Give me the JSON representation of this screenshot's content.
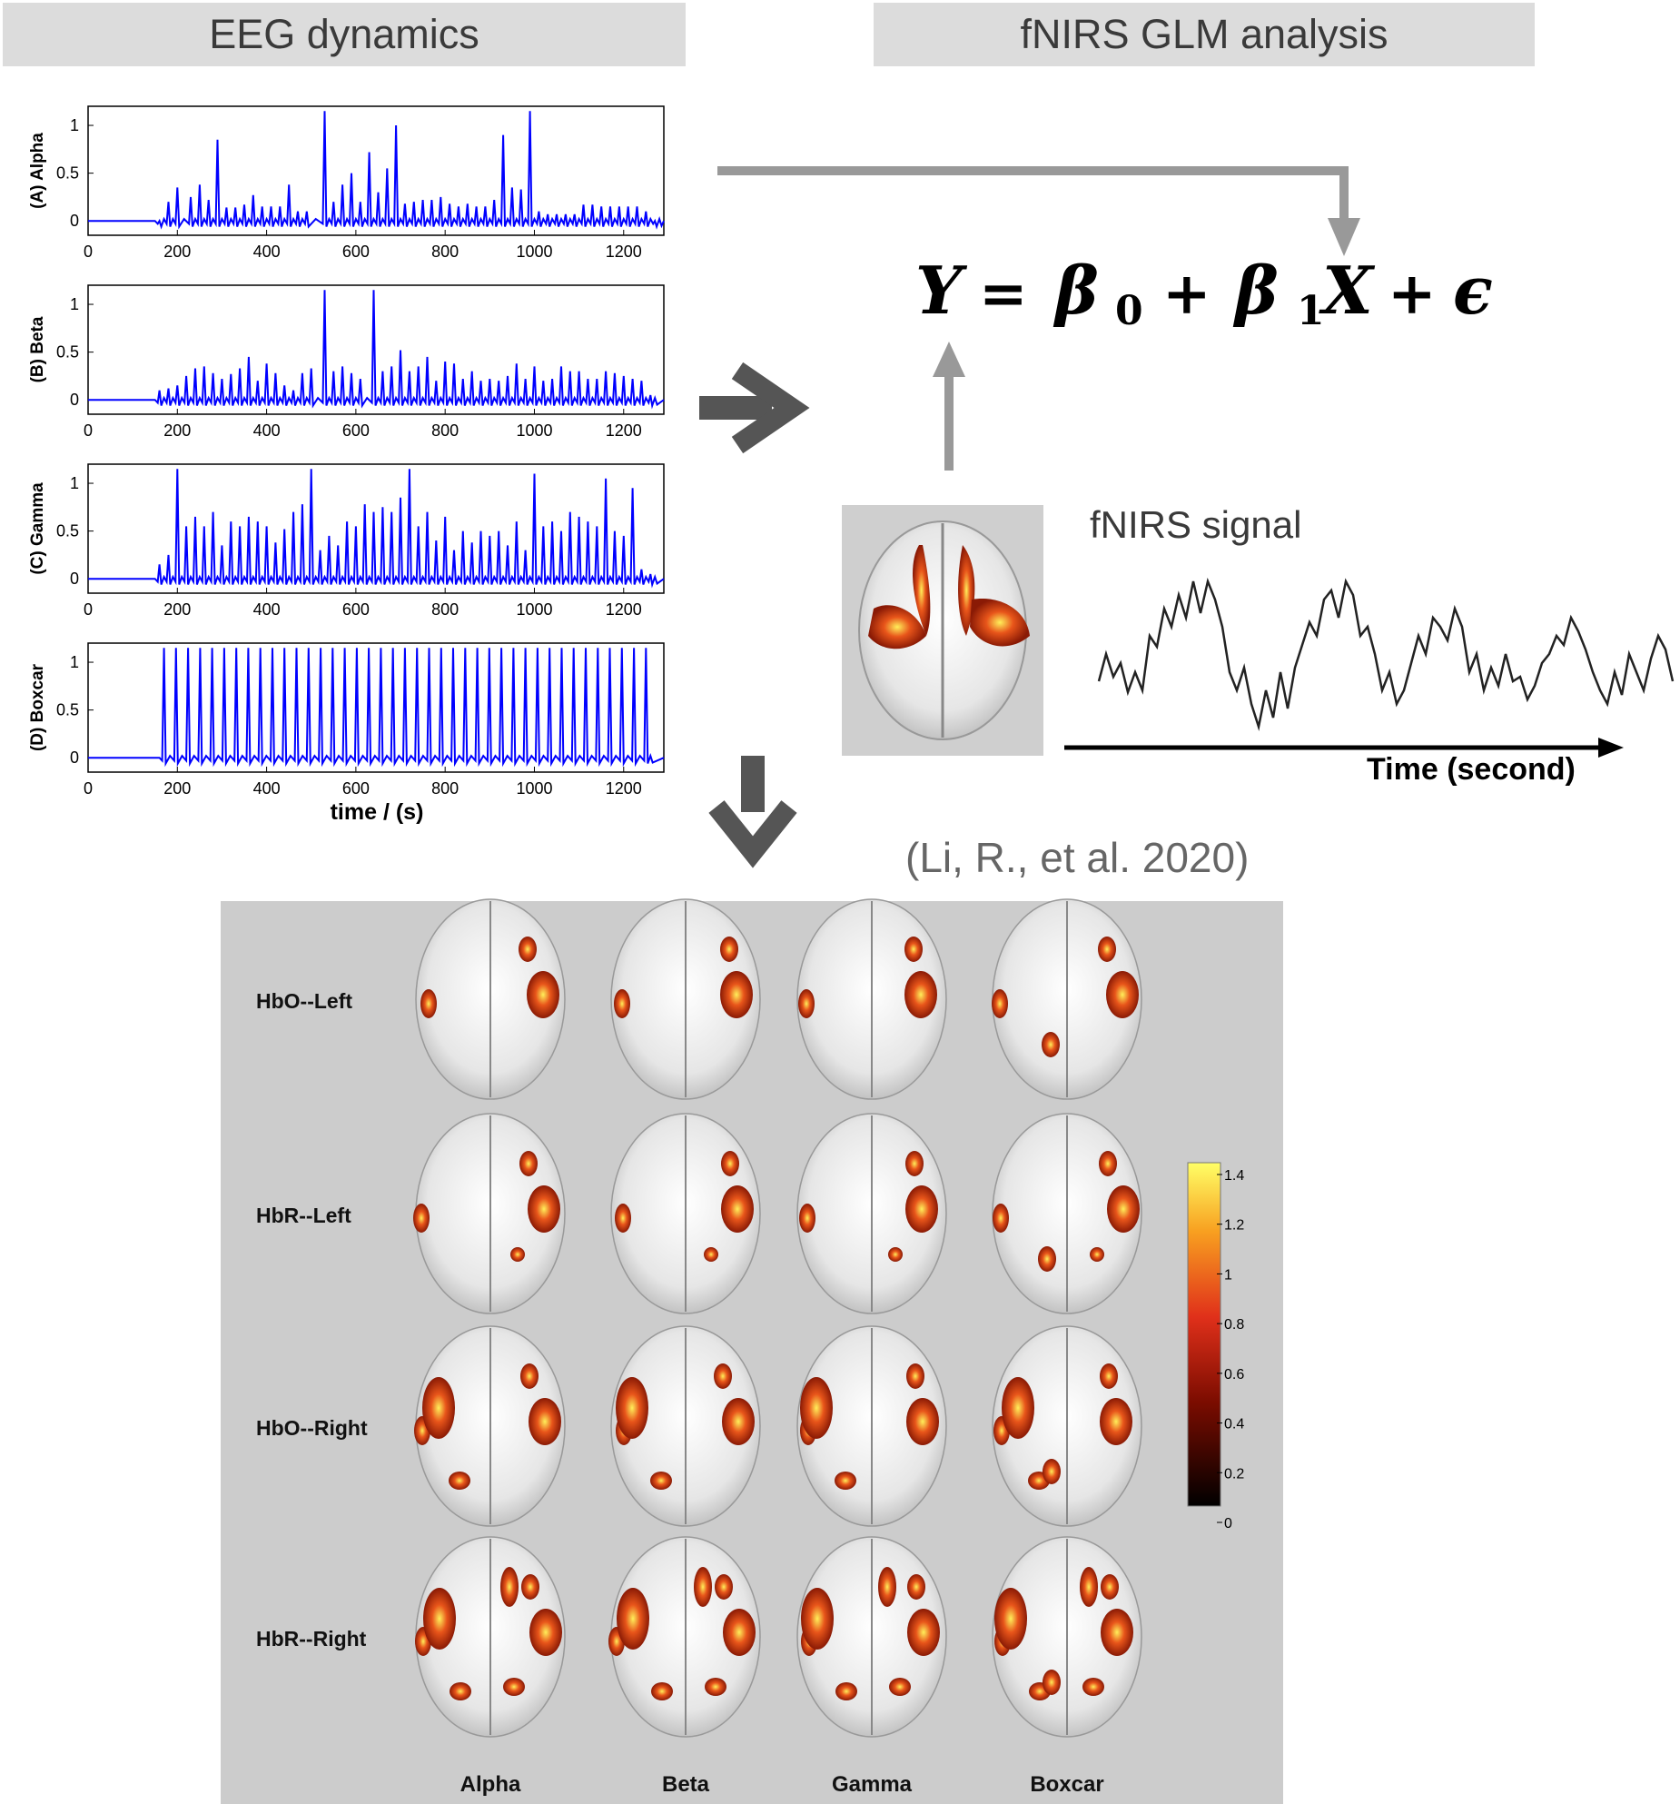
{
  "headers": {
    "left": "EEG dynamics",
    "right": "fNIRS GLM analysis"
  },
  "eeg_panels": {
    "y_ticks": [
      "0",
      "0.5",
      "1"
    ],
    "x_ticks": [
      "0",
      "200",
      "400",
      "600",
      "800",
      "1000",
      "1200"
    ],
    "x_label": "time / (s)",
    "line_color": "#0000ff",
    "labels": [
      "(A) Alpha",
      "(B) Beta",
      "(C) Gamma",
      "(D) Boxcar"
    ]
  },
  "chart_data": [
    {
      "type": "line",
      "title": "",
      "ylabel": "(A) Alpha",
      "xlabel": "",
      "xlim": [
        0,
        1290
      ],
      "ylim": [
        -0.15,
        1.2
      ],
      "x": [
        160,
        180,
        200,
        230,
        250,
        270,
        290,
        310,
        330,
        350,
        370,
        390,
        410,
        430,
        450,
        470,
        490,
        530,
        550,
        570,
        590,
        610,
        630,
        650,
        670,
        690,
        710,
        730,
        750,
        770,
        790,
        810,
        830,
        850,
        870,
        890,
        910,
        930,
        950,
        970,
        990,
        1010,
        1030,
        1050,
        1070,
        1090,
        1110,
        1130,
        1150,
        1170,
        1190,
        1210,
        1230,
        1250,
        1270
      ],
      "series": [
        {
          "values": [
            0,
            0.2,
            0.35,
            0.25,
            0.38,
            0.22,
            0.85,
            0.14,
            0.14,
            0.17,
            0.27,
            0.15,
            0.15,
            0.15,
            0.38,
            0.1,
            0.1,
            1.15,
            0.2,
            0.38,
            0.5,
            0.2,
            0.72,
            0.3,
            0.55,
            1.0,
            0.18,
            0.2,
            0.22,
            0.22,
            0.25,
            0.18,
            0.15,
            0.18,
            0.15,
            0.15,
            0.22,
            0.9,
            0.35,
            0.33,
            1.15,
            0.1,
            0.07,
            0.07,
            0.07,
            0.07,
            0.17,
            0.17,
            0.15,
            0.15,
            0.15,
            0.15,
            0.15,
            0.1,
            0
          ]
        }
      ]
    },
    {
      "type": "line",
      "title": "",
      "ylabel": "(B) Beta",
      "xlabel": "",
      "xlim": [
        0,
        1290
      ],
      "ylim": [
        -0.15,
        1.2
      ],
      "x": [
        160,
        180,
        200,
        220,
        240,
        260,
        280,
        300,
        320,
        340,
        360,
        380,
        400,
        420,
        440,
        460,
        480,
        500,
        530,
        550,
        570,
        590,
        610,
        640,
        660,
        680,
        700,
        720,
        740,
        760,
        780,
        800,
        820,
        840,
        860,
        880,
        900,
        920,
        940,
        960,
        980,
        1000,
        1020,
        1040,
        1060,
        1080,
        1100,
        1120,
        1140,
        1160,
        1180,
        1200,
        1220,
        1240,
        1260
      ],
      "series": [
        {
          "values": [
            0.1,
            0.12,
            0.15,
            0.25,
            0.33,
            0.35,
            0.28,
            0.22,
            0.27,
            0.33,
            0.45,
            0.2,
            0.38,
            0.28,
            0.15,
            0.1,
            0.28,
            0.33,
            1.15,
            0.3,
            0.35,
            0.28,
            0.22,
            1.15,
            0.3,
            0.35,
            0.52,
            0.3,
            0.35,
            0.45,
            0.2,
            0.4,
            0.38,
            0.22,
            0.3,
            0.2,
            0.22,
            0.2,
            0.25,
            0.38,
            0.22,
            0.35,
            0.2,
            0.22,
            0.35,
            0.3,
            0.3,
            0.22,
            0.22,
            0.3,
            0.28,
            0.25,
            0.22,
            0.2,
            0.05
          ]
        }
      ]
    },
    {
      "type": "line",
      "title": "",
      "ylabel": "(C) Gamma",
      "xlabel": "",
      "xlim": [
        0,
        1290
      ],
      "ylim": [
        -0.15,
        1.2
      ],
      "x": [
        160,
        180,
        200,
        220,
        240,
        260,
        280,
        300,
        320,
        340,
        360,
        380,
        400,
        420,
        440,
        460,
        480,
        500,
        520,
        540,
        560,
        580,
        600,
        620,
        640,
        660,
        680,
        700,
        720,
        740,
        760,
        780,
        800,
        820,
        840,
        860,
        880,
        900,
        920,
        940,
        960,
        980,
        1000,
        1020,
        1040,
        1060,
        1080,
        1100,
        1120,
        1140,
        1160,
        1180,
        1200,
        1220,
        1240,
        1260
      ],
      "series": [
        {
          "values": [
            0.15,
            0.25,
            1.15,
            0.55,
            0.65,
            0.55,
            0.7,
            0.35,
            0.6,
            0.55,
            0.65,
            0.6,
            0.55,
            0.38,
            0.52,
            0.7,
            0.78,
            1.15,
            0.3,
            0.45,
            0.35,
            0.6,
            0.55,
            0.78,
            0.7,
            0.75,
            0.7,
            0.85,
            1.15,
            0.55,
            0.7,
            0.4,
            0.65,
            0.3,
            0.5,
            0.38,
            0.5,
            0.45,
            0.5,
            0.35,
            0.6,
            0.3,
            1.1,
            0.55,
            0.6,
            0.5,
            0.7,
            0.65,
            0.6,
            0.55,
            1.05,
            0.5,
            0.45,
            0.95,
            0.1,
            0.05
          ]
        }
      ]
    },
    {
      "type": "line",
      "title": "",
      "ylabel": "(D) Boxcar",
      "xlabel": "time / (s)",
      "xlim": [
        0,
        1290
      ],
      "ylim": [
        -0.15,
        1.2
      ],
      "x": [
        170,
        197,
        224,
        251,
        278,
        305,
        332,
        359,
        386,
        413,
        440,
        467,
        494,
        521,
        548,
        575,
        602,
        629,
        656,
        683,
        710,
        737,
        764,
        791,
        818,
        845,
        872,
        899,
        926,
        953,
        980,
        1007,
        1034,
        1061,
        1088,
        1115,
        1142,
        1169,
        1196,
        1223,
        1250
      ],
      "series": [
        {
          "values": [
            1.15,
            1.15,
            1.15,
            1.15,
            1.15,
            1.15,
            1.15,
            1.15,
            1.15,
            1.15,
            1.15,
            1.15,
            1.15,
            1.15,
            1.15,
            1.15,
            1.15,
            1.15,
            1.15,
            1.15,
            1.15,
            1.15,
            1.15,
            1.15,
            1.15,
            1.15,
            1.15,
            1.15,
            1.15,
            1.15,
            1.15,
            1.15,
            1.15,
            1.15,
            1.15,
            1.15,
            1.15,
            1.15,
            1.15,
            1.15,
            1.15
          ]
        }
      ]
    }
  ],
  "equation": {
    "Y": "Y",
    "equals": "=",
    "beta0": "β",
    "sub0": "0",
    "plus1": "+",
    "beta1": "β",
    "sub1": "1",
    "X": "X",
    "plus2": "+",
    "eps": "ϵ"
  },
  "fnirs": {
    "signal_label": "fNIRS signal",
    "time_label": "Time (second)"
  },
  "citation": "(Li, R., et al. 2020)",
  "results_grid": {
    "row_labels": [
      "HbO--Left",
      "HbR--Left",
      "HbO--Right",
      "HbR--Right"
    ],
    "col_labels": [
      "Alpha",
      "Beta",
      "Gamma",
      "Boxcar"
    ],
    "colorbar_ticks": [
      "1.4",
      "1.2",
      "1",
      "0.8",
      "0.6",
      "0.4",
      "0.2",
      "0"
    ]
  },
  "colors": {
    "header_bg": "#dcdcdc",
    "arrow_gray": "#999999",
    "arrow_dark": "#555555",
    "panel_bg": "#cccccc",
    "eeg_line": "#0000ff"
  }
}
